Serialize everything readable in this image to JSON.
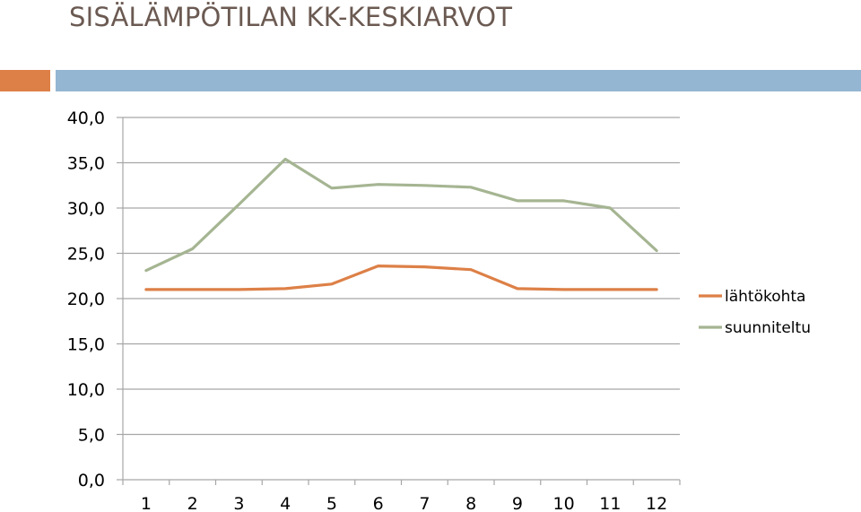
{
  "slide": {
    "title": "SISÄLÄMPÖTILAN KK-KESKIARVOT"
  },
  "colors": {
    "accent_orange": "#dd8047",
    "accent_blue": "#94b6d2",
    "title": "#6b5a52"
  },
  "chart_data": {
    "type": "line",
    "x": [
      "1",
      "2",
      "3",
      "4",
      "5",
      "6",
      "7",
      "8",
      "9",
      "10",
      "11",
      "12"
    ],
    "series": [
      {
        "name": "lähtökohta",
        "color": "#dd8047",
        "values": [
          21.0,
          21.0,
          21.0,
          21.1,
          21.6,
          23.6,
          23.5,
          23.2,
          21.1,
          21.0,
          21.0,
          21.0
        ]
      },
      {
        "name": "suunniteltu",
        "color": "#a5b592",
        "values": [
          23.1,
          25.5,
          30.4,
          35.4,
          32.2,
          32.6,
          32.5,
          32.3,
          30.8,
          30.8,
          30.0,
          25.3
        ]
      }
    ],
    "ylim": [
      0,
      40
    ],
    "yticks": [
      "0,0",
      "5,0",
      "10,0",
      "15,0",
      "20,0",
      "25,0",
      "30,0",
      "35,0",
      "40,0"
    ],
    "grid": true,
    "legend_position": "right"
  }
}
